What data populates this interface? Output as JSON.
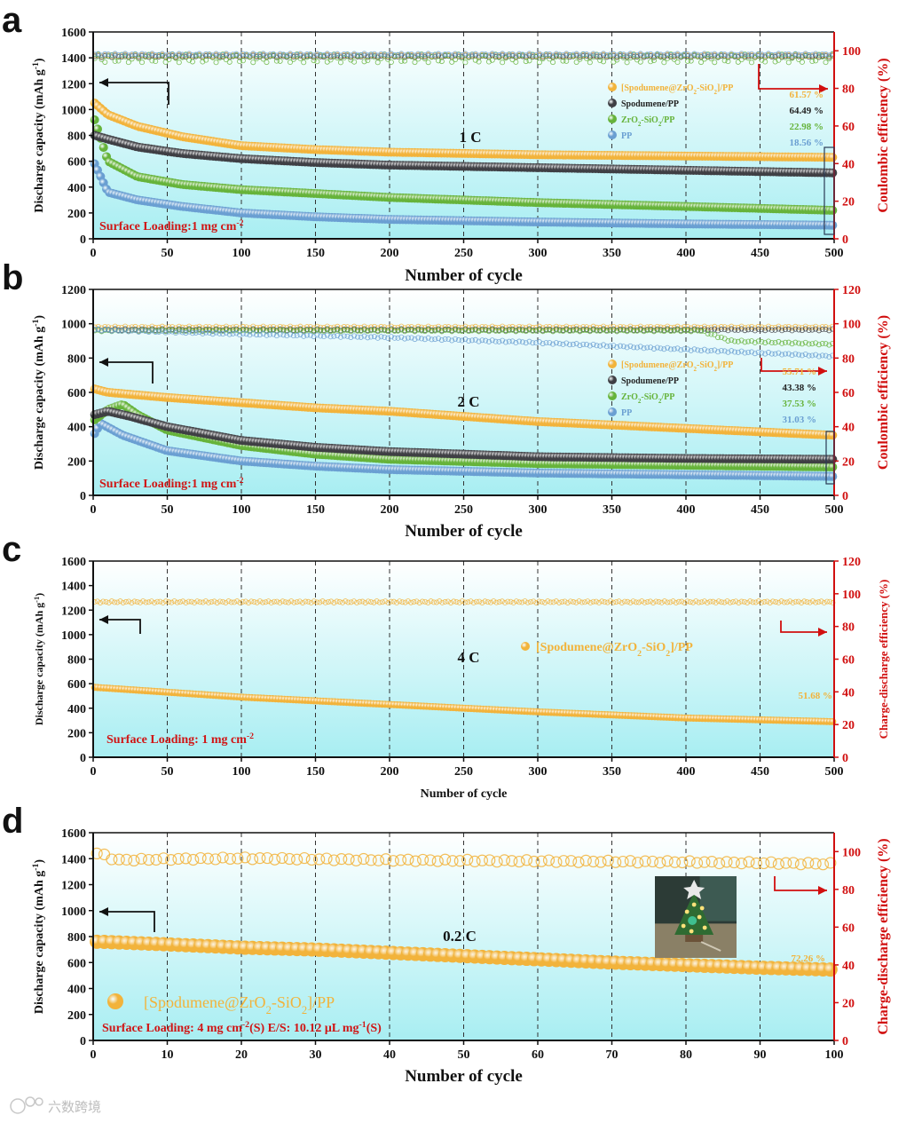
{
  "watermark": "六数跨境",
  "colors": {
    "orange": "#f2b33b",
    "dark": "#3f3f44",
    "green": "#66b33a",
    "blue": "#6a9fd2",
    "red": "#d10f0f",
    "bg_top": "#ffffff",
    "bg_bottom": "#a8eef2"
  },
  "chart_data": [
    {
      "panel": "a",
      "type": "scatter",
      "rate": "1 C",
      "xlabel": "Number of cycle",
      "ylabel": "Discharge capacity (mAh g⁻¹)",
      "ylabel_right": "Coulombic efficiency (%)",
      "xlim": [
        0,
        500
      ],
      "ylim": [
        0,
        1600
      ],
      "ylim_right": [
        0,
        110
      ],
      "xticks": [
        0,
        50,
        100,
        150,
        200,
        250,
        300,
        350,
        400,
        450,
        500
      ],
      "yticks": [
        0,
        200,
        400,
        600,
        800,
        1000,
        1200,
        1400,
        1600
      ],
      "yticks_right": [
        0,
        20,
        40,
        60,
        80,
        100
      ],
      "annotation": "Surface Loading:1 mg cm⁻²",
      "series": [
        {
          "name": "[Spodumene@ZrO₂-SiO₂]/PP",
          "color": "orange",
          "retention": "61.57 %",
          "capacity": {
            "x": [
              1,
              10,
              30,
              60,
              100,
              150,
              200,
              300,
              400,
              500
            ],
            "y": [
              1050,
              960,
              870,
              790,
              720,
              690,
              670,
              650,
              640,
              630
            ]
          },
          "efficiency": {
            "x": [
              1,
              500
            ],
            "y": [
              97.5,
              97.5
            ]
          }
        },
        {
          "name": "Spodumene/PP",
          "color": "dark",
          "retention": "64.49 %",
          "capacity": {
            "x": [
              1,
              10,
              30,
              60,
              100,
              150,
              200,
              300,
              400,
              500
            ],
            "y": [
              800,
              770,
              710,
              660,
              620,
              590,
              570,
              550,
              530,
              510
            ]
          },
          "efficiency": {
            "x": [
              1,
              500
            ],
            "y": [
              97.0,
              97.0
            ]
          }
        },
        {
          "name": "ZrO₂-SiO₂/PP",
          "color": "green",
          "retention": "22.98 %",
          "capacity": {
            "x": [
              1,
              10,
              30,
              60,
              100,
              150,
              200,
              300,
              400,
              500
            ],
            "y": [
              920,
              600,
              480,
              420,
              380,
              350,
              320,
              280,
              250,
              220
            ]
          },
          "efficiency": {
            "x": [
              1,
              500
            ],
            "y": [
              96.0,
              96.0
            ]
          }
        },
        {
          "name": "PP",
          "color": "blue",
          "retention": "18.56 %",
          "capacity": {
            "x": [
              1,
              10,
              30,
              60,
              100,
              150,
              200,
              300,
              400,
              500
            ],
            "y": [
              580,
              360,
              300,
              250,
              200,
              170,
              150,
              130,
              115,
              105
            ]
          },
          "efficiency": {
            "x": [
              1,
              500
            ],
            "y": [
              98.0,
              98.0
            ]
          }
        }
      ]
    },
    {
      "panel": "b",
      "type": "scatter",
      "rate": "2 C",
      "xlabel": "Number of cycle",
      "ylabel": "Discharge capacity (mAh g⁻¹)",
      "ylabel_right": "Coulombic efficiency (%)",
      "xlim": [
        0,
        500
      ],
      "ylim": [
        0,
        1200
      ],
      "ylim_right": [
        0,
        120
      ],
      "xticks": [
        0,
        50,
        100,
        150,
        200,
        250,
        300,
        350,
        400,
        450,
        500
      ],
      "yticks": [
        0,
        200,
        400,
        600,
        800,
        1000,
        1200
      ],
      "yticks_right": [
        0,
        20,
        40,
        60,
        80,
        100,
        120
      ],
      "annotation": "Surface Loading:1 mg cm⁻²",
      "series": [
        {
          "name": "[Spodumene@ZrO₂-SiO₂]/PP",
          "color": "orange",
          "retention": "55.71 %",
          "capacity": {
            "x": [
              1,
              10,
              50,
              100,
              150,
              200,
              250,
              300,
              350,
              400,
              450,
              500
            ],
            "y": [
              620,
              600,
              570,
              540,
              510,
              490,
              460,
              430,
              410,
              390,
              370,
              350
            ]
          },
          "efficiency": {
            "x": [
              1,
              500
            ],
            "y": [
              98.0,
              98.0
            ]
          }
        },
        {
          "name": "Spodumene/PP",
          "color": "dark",
          "retention": "43.38 %",
          "capacity": {
            "x": [
              1,
              10,
              25,
              50,
              100,
              150,
              200,
              300,
              400,
              500
            ],
            "y": [
              470,
              490,
              460,
              400,
              320,
              280,
              255,
              225,
              215,
              210
            ]
          },
          "efficiency": {
            "x": [
              1,
              500
            ],
            "y": [
              96.5,
              96.5
            ]
          }
        },
        {
          "name": "ZrO₂-SiO₂/PP",
          "color": "green",
          "retention": "37.53 %",
          "capacity": {
            "x": [
              1,
              10,
              20,
              30,
              50,
              100,
              150,
              200,
              300,
              400,
              500
            ],
            "y": [
              440,
              500,
              530,
              470,
              380,
              290,
              240,
              210,
              185,
              175,
              165
            ]
          },
          "efficiency": {
            "x": [
              1,
              410,
              430,
              500
            ],
            "y": [
              96.0,
              96.0,
              90.0,
              88.0
            ]
          }
        },
        {
          "name": "PP",
          "color": "blue",
          "retention": "31.03 %",
          "capacity": {
            "x": [
              1,
              5,
              20,
              50,
              100,
              150,
              200,
              300,
              400,
              500
            ],
            "y": [
              360,
              420,
              350,
              260,
              200,
              170,
              150,
              130,
              120,
              110
            ]
          },
          "efficiency": {
            "x": [
              1,
              100,
              200,
              300,
              400,
              500
            ],
            "y": [
              96.5,
              94.0,
              92.0,
              89.0,
              85.0,
              81.0
            ]
          }
        }
      ]
    },
    {
      "panel": "c",
      "type": "scatter",
      "rate": "4 C",
      "xlabel": "Number of cycle",
      "ylabel": "Discharge capacity (mAh g⁻¹)",
      "ylabel_right": "Charge-discharge efficiency (%)",
      "xlim": [
        0,
        500
      ],
      "ylim": [
        0,
        1600
      ],
      "ylim_right": [
        0,
        120
      ],
      "xticks": [
        0,
        50,
        100,
        150,
        200,
        250,
        300,
        350,
        400,
        450,
        500
      ],
      "yticks": [
        0,
        200,
        400,
        600,
        800,
        1000,
        1200,
        1400,
        1600
      ],
      "yticks_right": [
        0,
        20,
        40,
        60,
        80,
        100,
        120
      ],
      "annotation": "Surface Loading: 1 mg cm⁻²",
      "series": [
        {
          "name": "[Spodumene@ZrO₂-SiO₂]/PP",
          "color": "orange",
          "retention": "51.68 %",
          "capacity": {
            "x": [
              1,
              100,
              200,
              300,
              400,
              500
            ],
            "y": [
              570,
              490,
              430,
              370,
              320,
              290
            ]
          },
          "efficiency": {
            "x": [
              1,
              500
            ],
            "y": [
              95.0,
              95.0
            ]
          }
        }
      ]
    },
    {
      "panel": "d",
      "type": "scatter",
      "rate": "0.2 C",
      "xlabel": "Number of cycle",
      "ylabel": "Discharge capacity (mAh g⁻¹)",
      "ylabel_right": "Charge-discharge efficiency (%)",
      "xlim": [
        0,
        100
      ],
      "ylim": [
        0,
        1600
      ],
      "ylim_right": [
        0,
        110
      ],
      "xticks": [
        0,
        10,
        20,
        30,
        40,
        50,
        60,
        70,
        80,
        90,
        100
      ],
      "yticks": [
        0,
        200,
        400,
        600,
        800,
        1000,
        1200,
        1400,
        1600
      ],
      "yticks_right": [
        0,
        20,
        40,
        60,
        80,
        100
      ],
      "annotation": "Surface Loading: 4 mg cm⁻²(S)  E/S: 10.12 μL mg⁻¹(S)",
      "inset": "LED Christmas tree photo",
      "series": [
        {
          "name": "[Spodumene@ZrO₂-SiO₂]/PP",
          "color": "orange",
          "retention": "72.26 %",
          "capacity": {
            "x": [
              1,
              10,
              20,
              30,
              40,
              50,
              60,
              70,
              80,
              90,
              100
            ],
            "y": [
              760,
              740,
              715,
              700,
              675,
              650,
              625,
              600,
              580,
              560,
              545
            ]
          },
          "efficiency": {
            "x": [
              1,
              3,
              10,
              20,
              40,
              60,
              80,
              100
            ],
            "y": [
              99.0,
              95.5,
              96.0,
              96.5,
              95.5,
              95.0,
              94.5,
              93.5
            ]
          }
        }
      ]
    }
  ]
}
